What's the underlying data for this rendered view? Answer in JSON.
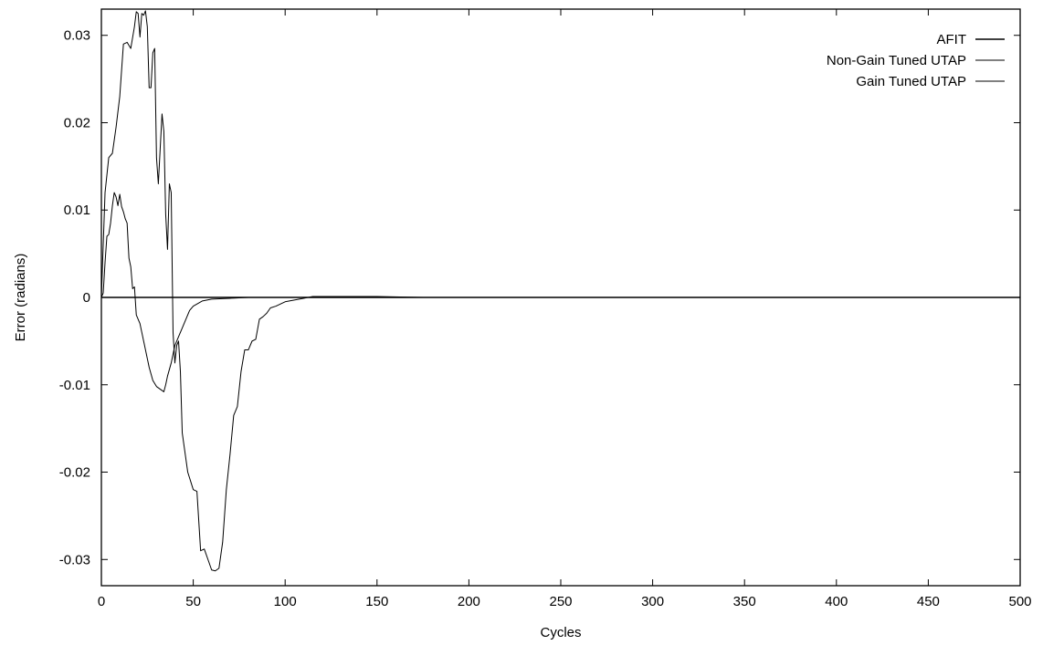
{
  "chart_data": {
    "type": "line",
    "title": "",
    "xlabel": "Cycles",
    "ylabel": "Error (radians)",
    "xlim": [
      0,
      500
    ],
    "ylim": [
      -0.033,
      0.033
    ],
    "xticks": [
      0,
      50,
      100,
      150,
      200,
      250,
      300,
      350,
      400,
      450,
      500
    ],
    "xtick_labels": [
      "0",
      "50",
      "100",
      "150",
      "200",
      "250",
      "300",
      "350",
      "400",
      "450",
      "500"
    ],
    "yticks": [
      0.03,
      0.02,
      0.01,
      0,
      -0.01,
      -0.02,
      -0.03
    ],
    "ytick_labels": [
      "0.03",
      "0.02",
      "0.01",
      "0",
      "-0.01",
      "-0.02",
      "-0.03"
    ],
    "grid": false,
    "legend_position": "top-right",
    "colors": {
      "line": "#000000",
      "axis": "#000000"
    },
    "series": [
      {
        "name": "AFIT",
        "x": [
          0,
          500
        ],
        "y": [
          0,
          0
        ]
      },
      {
        "name": "Non-Gain Tuned UTAP",
        "x": [
          0,
          2,
          4,
          6,
          8,
          10,
          12,
          14,
          16,
          18,
          19,
          20,
          21,
          22,
          23,
          24,
          25,
          26,
          27,
          28,
          29,
          30,
          31,
          32,
          33,
          34,
          35,
          36,
          37,
          38,
          39,
          40,
          41,
          42,
          43,
          44,
          45,
          47,
          50,
          52,
          54,
          56,
          58,
          60,
          62,
          64,
          66,
          68,
          70,
          72,
          74,
          76,
          78,
          80,
          82,
          84,
          86,
          88,
          90,
          92,
          95,
          98,
          100,
          105,
          110,
          115,
          120,
          130,
          150,
          175,
          500
        ],
        "y": [
          0,
          0.012,
          0.016,
          0.0165,
          0.0195,
          0.023,
          0.029,
          0.0292,
          0.0285,
          0.031,
          0.0327,
          0.0325,
          0.0298,
          0.0325,
          0.0323,
          0.0328,
          0.031,
          0.024,
          0.024,
          0.028,
          0.0285,
          0.016,
          0.013,
          0.017,
          0.021,
          0.019,
          0.0095,
          0.0055,
          0.013,
          0.012,
          -0.004,
          -0.0075,
          -0.0055,
          -0.005,
          -0.0085,
          -0.0155,
          -0.017,
          -0.02,
          -0.022,
          -0.0222,
          -0.029,
          -0.0288,
          -0.03,
          -0.0312,
          -0.0313,
          -0.031,
          -0.028,
          -0.022,
          -0.018,
          -0.0135,
          -0.0125,
          -0.0085,
          -0.006,
          -0.006,
          -0.005,
          -0.0048,
          -0.0025,
          -0.0022,
          -0.0018,
          -0.0012,
          -0.001,
          -0.0007,
          -0.0005,
          -0.0003,
          -0.0001,
          0.0001,
          0.0001,
          0.0001,
          0.0001,
          0,
          0
        ]
      },
      {
        "name": "Gain Tuned UTAP",
        "x": [
          0,
          1,
          2,
          3,
          4,
          5,
          6,
          7,
          8,
          9,
          10,
          11,
          12,
          13,
          14,
          15,
          16,
          17,
          18,
          19,
          20,
          21,
          22,
          23,
          24,
          26,
          28,
          30,
          32,
          34,
          35,
          36,
          38,
          40,
          42,
          44,
          46,
          48,
          50,
          55,
          60,
          70,
          80,
          500
        ],
        "y": [
          0,
          0.0005,
          0.004,
          0.007,
          0.0072,
          0.0085,
          0.0105,
          0.012,
          0.0115,
          0.0105,
          0.0118,
          0.0104,
          0.0098,
          0.009,
          0.0085,
          0.0045,
          0.0035,
          0.001,
          0.0012,
          -0.002,
          -0.0025,
          -0.003,
          -0.004,
          -0.005,
          -0.006,
          -0.008,
          -0.0095,
          -0.0102,
          -0.0105,
          -0.0108,
          -0.01,
          -0.009,
          -0.0075,
          -0.0055,
          -0.0045,
          -0.0035,
          -0.0025,
          -0.0015,
          -0.001,
          -0.0004,
          -0.0002,
          -0.0001,
          0,
          0
        ]
      }
    ]
  }
}
